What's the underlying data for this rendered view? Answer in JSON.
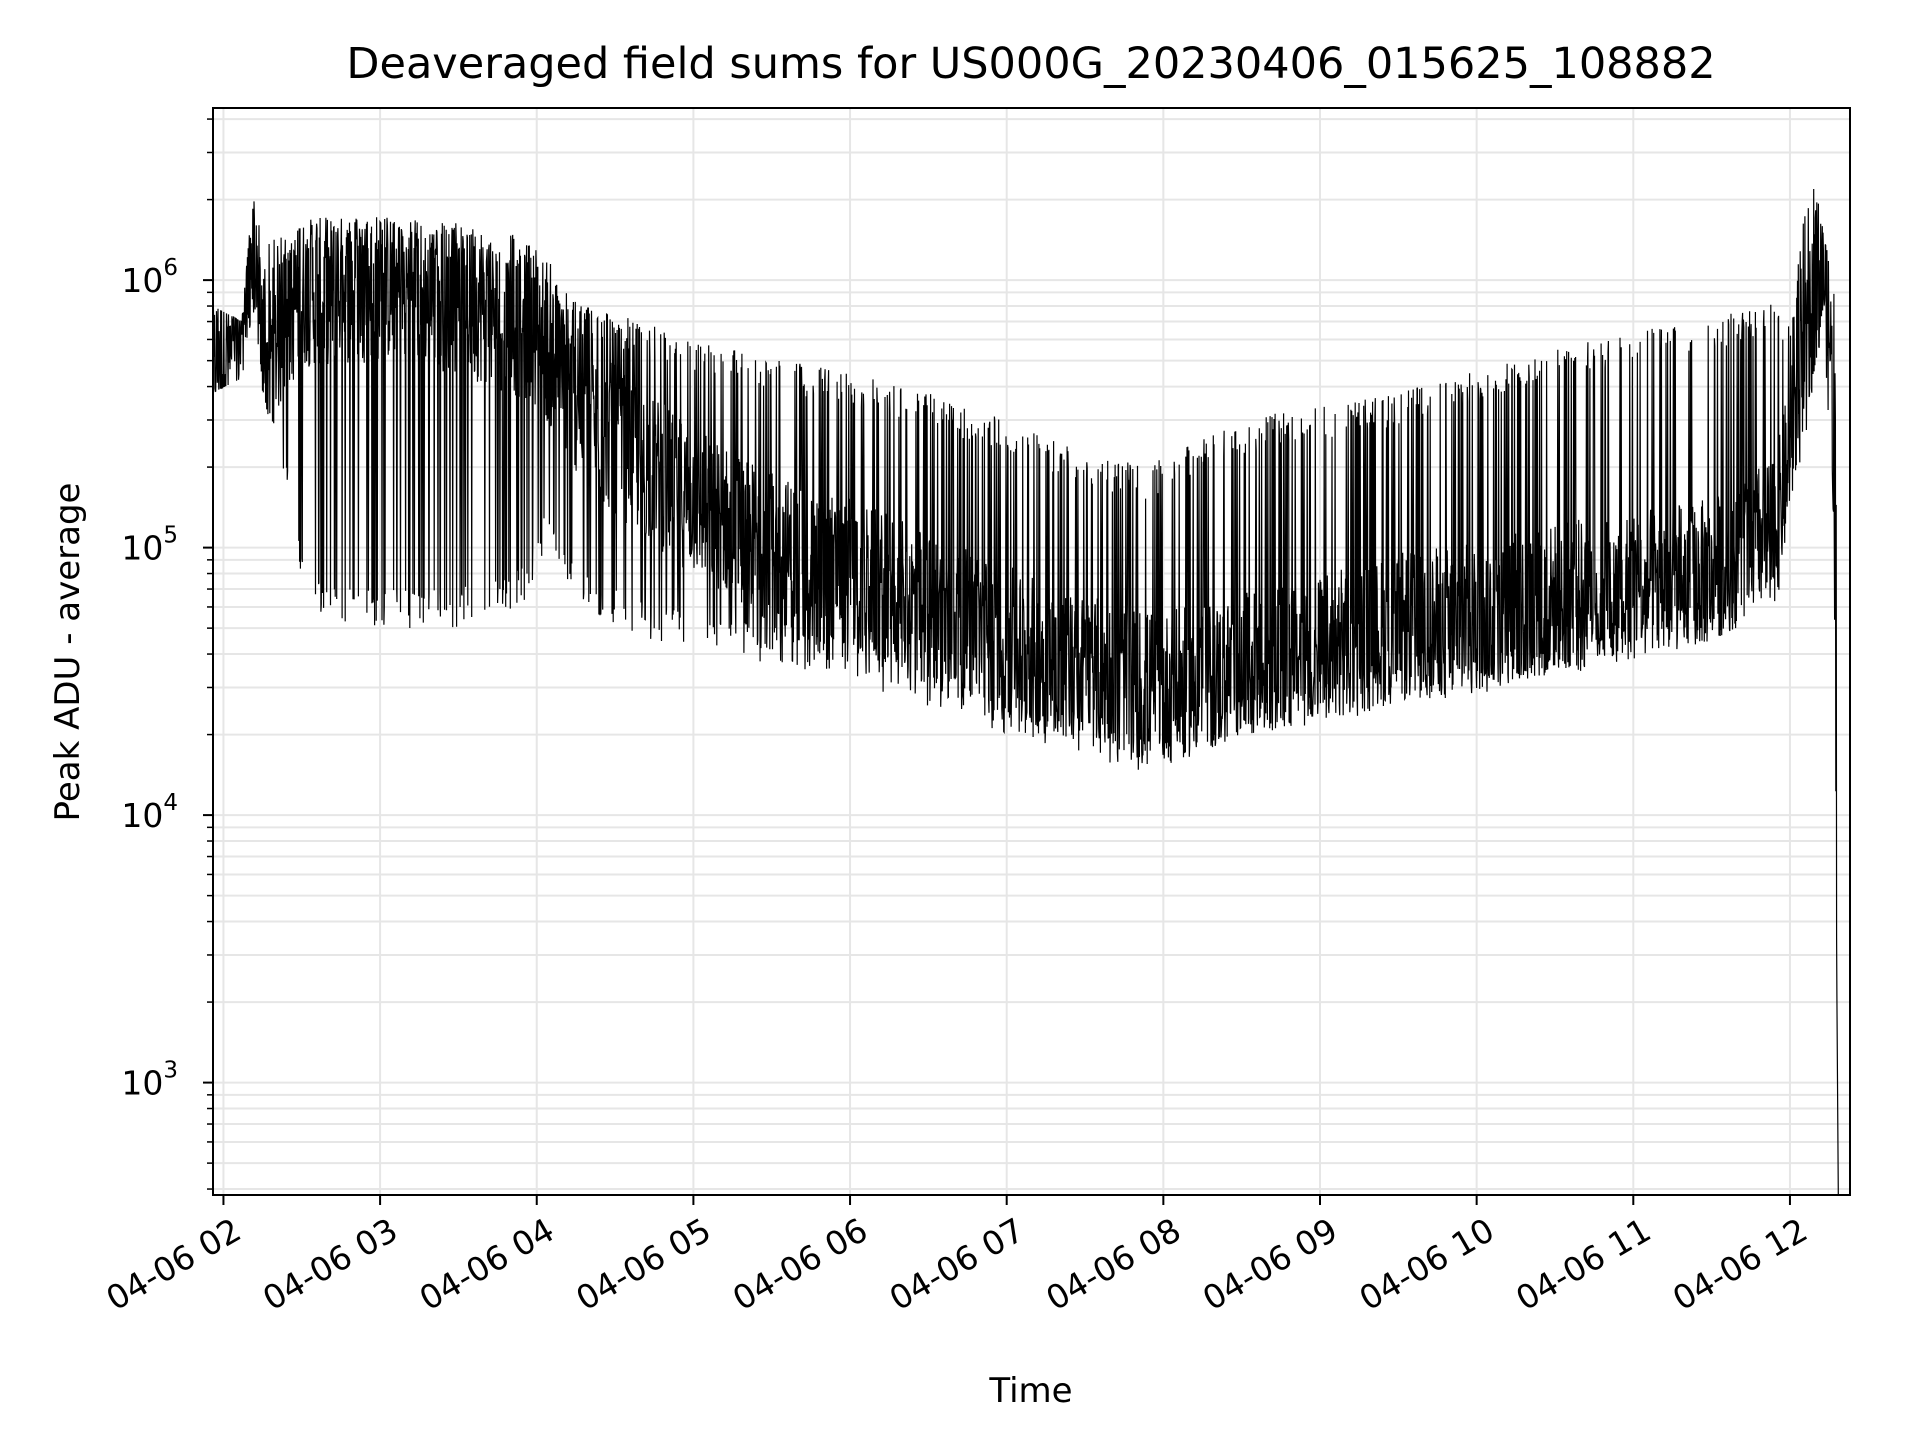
{
  "chart_data": {
    "type": "line",
    "title": "Deaveraged field sums for US000G_20230406_015625_108882",
    "xlabel": "Time",
    "ylabel": "Peak ADU - average",
    "yscale": "log",
    "ylim": [
      380,
      4400000
    ],
    "xlim": [
      "2023-04-06 01:56",
      "2023-04-06 12:23"
    ],
    "grid": true,
    "line_color": "#000000",
    "grid_color": "#e6e6e6",
    "x_ticks": [
      {
        "t": "2023-04-06 02:00",
        "label": "04-06 02"
      },
      {
        "t": "2023-04-06 03:00",
        "label": "04-06 03"
      },
      {
        "t": "2023-04-06 04:00",
        "label": "04-06 04"
      },
      {
        "t": "2023-04-06 05:00",
        "label": "04-06 05"
      },
      {
        "t": "2023-04-06 06:00",
        "label": "04-06 06"
      },
      {
        "t": "2023-04-06 07:00",
        "label": "04-06 07"
      },
      {
        "t": "2023-04-06 08:00",
        "label": "04-06 08"
      },
      {
        "t": "2023-04-06 09:00",
        "label": "04-06 09"
      },
      {
        "t": "2023-04-06 10:00",
        "label": "04-06 10"
      },
      {
        "t": "2023-04-06 11:00",
        "label": "04-06 11"
      },
      {
        "t": "2023-04-06 12:00",
        "label": "04-06 12"
      }
    ],
    "y_ticks": [
      {
        "value": 1000,
        "base": "10",
        "exp": "3"
      },
      {
        "value": 10000,
        "base": "10",
        "exp": "4"
      },
      {
        "value": 100000,
        "base": "10",
        "exp": "5"
      },
      {
        "value": 1000000,
        "base": "10",
        "exp": "6"
      }
    ],
    "envelope": [
      {
        "t": "2023-04-06 01:56",
        "low": 380000,
        "high": 800000
      },
      {
        "t": "2023-04-06 02:07",
        "low": 430000,
        "high": 700000
      },
      {
        "t": "2023-04-06 02:12",
        "low": 800000,
        "high": 2500000
      },
      {
        "t": "2023-04-06 02:15",
        "low": 380000,
        "high": 1300000
      },
      {
        "t": "2023-04-06 02:22",
        "low": 200000,
        "high": 1500000
      },
      {
        "t": "2023-04-06 02:33",
        "low": 55000,
        "high": 1700000
      },
      {
        "t": "2023-04-06 03:00",
        "low": 50000,
        "high": 1750000
      },
      {
        "t": "2023-04-06 03:30",
        "low": 50000,
        "high": 1650000
      },
      {
        "t": "2023-04-06 03:55",
        "low": 60000,
        "high": 1500000
      },
      {
        "t": "2023-04-06 04:04",
        "low": 100000,
        "high": 1200000
      },
      {
        "t": "2023-04-06 04:15",
        "low": 60000,
        "high": 850000
      },
      {
        "t": "2023-04-06 04:40",
        "low": 45000,
        "high": 700000
      },
      {
        "t": "2023-04-06 05:00",
        "low": 40000,
        "high": 600000
      },
      {
        "t": "2023-04-06 05:30",
        "low": 36000,
        "high": 520000
      },
      {
        "t": "2023-04-06 06:00",
        "low": 32000,
        "high": 450000
      },
      {
        "t": "2023-04-06 06:30",
        "low": 25000,
        "high": 380000
      },
      {
        "t": "2023-04-06 07:00",
        "low": 20000,
        "high": 300000
      },
      {
        "t": "2023-04-06 07:30",
        "low": 17000,
        "high": 230000
      },
      {
        "t": "2023-04-06 07:53",
        "low": 14000,
        "high": 200000
      },
      {
        "t": "2023-04-06 08:30",
        "low": 20000,
        "high": 300000
      },
      {
        "t": "2023-04-06 09:00",
        "low": 22000,
        "high": 340000
      },
      {
        "t": "2023-04-06 09:30",
        "low": 25000,
        "high": 380000
      },
      {
        "t": "2023-04-06 10:00",
        "low": 28000,
        "high": 460000
      },
      {
        "t": "2023-04-06 10:30",
        "low": 32000,
        "high": 560000
      },
      {
        "t": "2023-04-06 11:00",
        "low": 38000,
        "high": 640000
      },
      {
        "t": "2023-04-06 11:30",
        "low": 45000,
        "high": 740000
      },
      {
        "t": "2023-04-06 11:55",
        "low": 60000,
        "high": 820000
      },
      {
        "t": "2023-04-06 12:00",
        "low": 150000,
        "high": 700000
      },
      {
        "t": "2023-04-06 12:08",
        "low": 300000,
        "high": 2800000
      },
      {
        "t": "2023-04-06 12:13",
        "low": 700000,
        "high": 1500000
      },
      {
        "t": "2023-04-06 12:17",
        "low": 100000,
        "high": 900000
      },
      {
        "t": "2023-04-06 12:18",
        "low": 380,
        "high": 100000
      }
    ],
    "baseline": [
      {
        "t": "2023-04-06 01:56",
        "value": 480000
      },
      {
        "t": "2023-04-06 02:05",
        "value": 550000
      },
      {
        "t": "2023-04-06 02:10",
        "value": 1300000
      },
      {
        "t": "2023-04-06 02:16",
        "value": 480000
      },
      {
        "t": "2023-04-06 02:30",
        "value": 900000
      },
      {
        "t": "2023-04-06 03:00",
        "value": 950000
      },
      {
        "t": "2023-04-06 03:30",
        "value": 850000
      },
      {
        "t": "2023-04-06 04:00",
        "value": 650000
      },
      {
        "t": "2023-04-06 04:20",
        "value": 300000
      },
      {
        "t": "2023-04-06 05:00",
        "value": 150000
      },
      {
        "t": "2023-04-06 05:30",
        "value": 100000
      },
      {
        "t": "2023-04-06 06:00",
        "value": 80000
      },
      {
        "t": "2023-04-06 06:30",
        "value": 60000
      },
      {
        "t": "2023-04-06 07:00",
        "value": 45000
      },
      {
        "t": "2023-04-06 07:30",
        "value": 35000
      },
      {
        "t": "2023-04-06 08:00",
        "value": 30000
      },
      {
        "t": "2023-04-06 08:30",
        "value": 35000
      },
      {
        "t": "2023-04-06 09:00",
        "value": 42000
      },
      {
        "t": "2023-04-06 09:30",
        "value": 50000
      },
      {
        "t": "2023-04-06 10:00",
        "value": 55000
      },
      {
        "t": "2023-04-06 10:30",
        "value": 65000
      },
      {
        "t": "2023-04-06 11:00",
        "value": 72000
      },
      {
        "t": "2023-04-06 11:30",
        "value": 80000
      },
      {
        "t": "2023-04-06 11:55",
        "value": 120000
      },
      {
        "t": "2023-04-06 12:05",
        "value": 450000
      },
      {
        "t": "2023-04-06 12:12",
        "value": 1300000
      },
      {
        "t": "2023-04-06 12:16",
        "value": 500000
      },
      {
        "t": "2023-04-06 12:17",
        "value": 95000
      },
      {
        "t": "2023-04-06 12:18",
        "value": 3000
      },
      {
        "t": "2023-04-06 12:18:30",
        "value": 380
      }
    ]
  }
}
